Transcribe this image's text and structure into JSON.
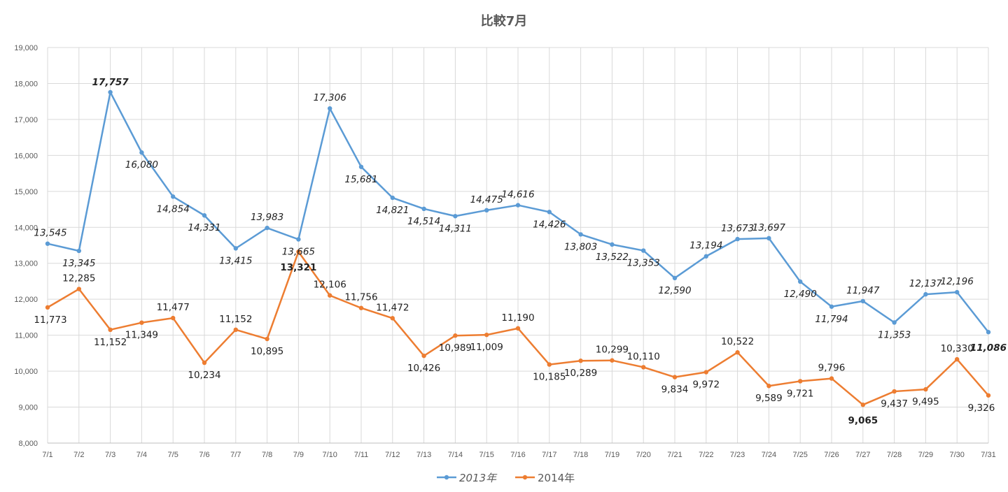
{
  "chart_data": {
    "type": "line",
    "title": "比較7月",
    "xlabel": "",
    "ylabel": "",
    "ylim": [
      8000,
      19000
    ],
    "yticks": [
      8000,
      9000,
      10000,
      11000,
      12000,
      13000,
      14000,
      15000,
      16000,
      17000,
      18000,
      19000
    ],
    "ytick_labels": [
      "8,000",
      "9,000",
      "10,000",
      "11,000",
      "12,000",
      "13,000",
      "14,000",
      "15,000",
      "16,000",
      "17,000",
      "18,000",
      "19,000"
    ],
    "grid": true,
    "legend_position": "bottom",
    "categories": [
      "7/1",
      "7/2",
      "7/3",
      "7/4",
      "7/5",
      "7/6",
      "7/7",
      "7/8",
      "7/9",
      "7/10",
      "7/11",
      "7/12",
      "7/13",
      "7/14",
      "7/15",
      "7/16",
      "7/17",
      "7/18",
      "7/19",
      "7/20",
      "7/21",
      "7/22",
      "7/23",
      "7/24",
      "7/25",
      "7/26",
      "7/27",
      "7/28",
      "7/29",
      "7/30",
      "7/31"
    ],
    "series": [
      {
        "name": "2013年",
        "color": "#5B9BD5",
        "italic": true,
        "values": [
          13545,
          13345,
          17757,
          16080,
          14854,
          14331,
          13415,
          13983,
          13665,
          17306,
          15681,
          14821,
          14514,
          14311,
          14475,
          14616,
          14426,
          13803,
          13522,
          13353,
          12590,
          13194,
          13673,
          13697,
          12490,
          11794,
          11947,
          11353,
          12137,
          12196,
          11086
        ],
        "labels": [
          "13,545",
          "13,345",
          "17,757",
          "16,080",
          "14,854",
          "14,331",
          "13,415",
          "13,983",
          "13,665",
          "17,306",
          "15,681",
          "14,821",
          "14,514",
          "14,311",
          "14,475",
          "14,616",
          "14,426",
          "13,803",
          "13,522",
          "13,353",
          "12,590",
          "13,194",
          "13,673",
          "13,697",
          "12,490",
          "11,794",
          "11,947",
          "11,353",
          "12,137",
          "12,196",
          "11,086"
        ]
      },
      {
        "name": "2014年",
        "color": "#ED7D31",
        "italic": false,
        "values": [
          11773,
          12285,
          11152,
          11349,
          11477,
          10234,
          11152,
          10895,
          13321,
          12106,
          11756,
          11472,
          10426,
          10989,
          11009,
          11190,
          10185,
          10289,
          10299,
          10110,
          9834,
          9972,
          10522,
          9589,
          9721,
          9796,
          9065,
          9437,
          9495,
          10330,
          9326
        ],
        "labels": [
          "11,773",
          "12,285",
          "11,152",
          "11,349",
          "11,477",
          "10,234",
          "11,152",
          "10,895",
          "13,321",
          "12,106",
          "11,756",
          "11,472",
          "10,426",
          "10,989",
          "11,009",
          "11,190",
          "10,185",
          "10,289",
          "10,299",
          "10,110",
          "9,834",
          "9,972",
          "10,522",
          "9,589",
          "9,721",
          "9,796",
          "9,065",
          "9,437",
          "9,495",
          "10,330",
          "9,326"
        ]
      }
    ],
    "highlights": [
      {
        "series": 0,
        "index": 2,
        "color": "#C00000"
      },
      {
        "series": 0,
        "index": 30,
        "color": "#7030A0"
      },
      {
        "series": 1,
        "index": 8,
        "color": "#C00000"
      },
      {
        "series": 1,
        "index": 26,
        "color": "#7030A0"
      }
    ]
  }
}
